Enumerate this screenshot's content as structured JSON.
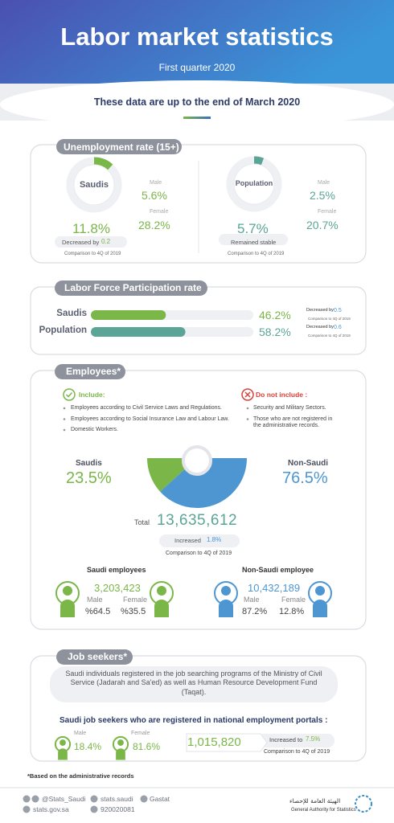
{
  "header": {
    "title": "Labor market statistics",
    "subtitle": "First quarter 2020",
    "note": "These data are up to the end of March 2020"
  },
  "unemployment": {
    "title": "Unemployment rate (15+)",
    "saudis": {
      "label": "Saudis",
      "rate": {
        "value": 11.8,
        "label": "11.8%"
      },
      "male_label": "Male",
      "male": "5.6%",
      "female_label": "Female",
      "female": "28.2%",
      "change": "Decreased by",
      "change_value": "0.2",
      "comparison": "Comparison to 4Q of 2019"
    },
    "population": {
      "label": "Population",
      "rate": {
        "value": 5.7,
        "label": "5.7%"
      },
      "male_label": "Male",
      "male": "2.5%",
      "female_label": "Female",
      "female": "20.7%",
      "change": "Remained stable",
      "comparison": "Comparison to 4Q of 2019"
    }
  },
  "participation": {
    "title": "Labor Force Participation rate",
    "rows": [
      {
        "label": "Saudis",
        "rate": {
          "value": 46.2,
          "label": "46.2%"
        },
        "change": "Decreased by",
        "change_value": "0.5",
        "comparison": "Comparison to 4Q of 2019"
      },
      {
        "label": "Population",
        "rate": {
          "value": 58.2,
          "label": "58.2%"
        },
        "change": "Decreased by",
        "change_value": "0.6",
        "comparison": "Comparison to 4Q of 2019"
      }
    ]
  },
  "employees": {
    "title": "Employees*",
    "include_title": "Include:",
    "include": [
      "Employees according to Civil Service Laws and Regulations.",
      "Employees according to Social Insurance Law and  Labour Law.",
      "Domestic Workers."
    ],
    "exclude_title": "Do not include :",
    "exclude": [
      "Security and Military Sectors.",
      "Those who are not registered in the administrative records."
    ],
    "saudis": {
      "label": "Saudis",
      "share": {
        "value": 23.5,
        "label": "23.5%"
      }
    },
    "non_saudi": {
      "label": "Non-Saudi",
      "share": {
        "value": 76.5,
        "label": "76.5%"
      }
    },
    "total_label": "Total",
    "total": "13,635,612",
    "change": "Increased",
    "change_value": "1.8%",
    "comparison": "Comparison to 4Q of 2019",
    "saudi_employees": {
      "title": "Saudi employees",
      "count": "3,203,423",
      "male_label": "Male",
      "male": "%64.5",
      "female_label": "Female",
      "female": "%35.5"
    },
    "non_saudi_employees": {
      "title": "Non-Saudi employee",
      "count": "10,432,189",
      "male_label": "Male",
      "male": "87.2%",
      "female_label": "Female",
      "female": "12.8%"
    }
  },
  "job_seekers": {
    "title": "Job seekers*",
    "description": "Saudi individuals registered in the job searching programs of the Ministry of Civil Service (Jadarah and Sa'ed) as well as Human Resource Development Fund (Taqat).",
    "subtitle": "Saudi job seekers who are registered in national employment portals :",
    "male_label": "Male",
    "male": "18.4%",
    "female_label": "Female",
    "female": "81.6%",
    "total": "1,015,820",
    "change": "Increased to",
    "change_value": "7.5%",
    "comparison": "Comparison to 4Q of 2019"
  },
  "footnote": "*Based on the administrative records",
  "footer": {
    "twitter": "@Stats_Saudi",
    "facebook": "stats.saudi",
    "linkedin": "Gastat",
    "website": "stats.gov.sa",
    "phone": "920020081",
    "org_arabic": "الهيئة العامة للإحصاء",
    "org": "General Authority for Statistics"
  }
}
